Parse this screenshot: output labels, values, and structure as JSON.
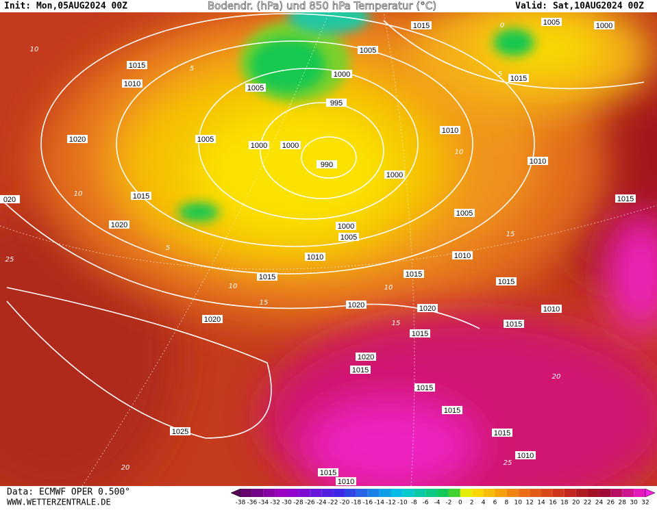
{
  "header": {
    "init": "Init: Mon,05AUG2024 00Z",
    "title": "Bodendr. (hPa) und 850 hPa Temperatur (°C)",
    "valid": "Valid: Sat,10AUG2024 00Z"
  },
  "isobar_labels": [
    "1015",
    "1005",
    "1000",
    "1005",
    "1015",
    "1010",
    "1000",
    "1015",
    "1005",
    "995",
    "1010",
    "1020",
    "1005",
    "1000",
    "1000",
    "990",
    "1010",
    "1000",
    "1015",
    "020",
    "1015",
    "1020",
    "1005",
    "1000",
    "1005",
    "1010",
    "1010",
    "1015",
    "1015",
    "1015",
    "1020",
    "1020",
    "1010",
    "1020",
    "1015",
    "1015",
    "1020",
    "1015",
    "1015",
    "1015",
    "1015",
    "1025",
    "1010",
    "1015",
    "1010"
  ],
  "temperature_labels": [
    "10",
    "5",
    "10",
    "5",
    "10",
    "15",
    "15",
    "15",
    "20",
    "25",
    "20",
    "25",
    "10",
    "10",
    "5",
    "0"
  ],
  "footer": {
    "source": "Data: ECMWF OPER 0.500°",
    "website": "WWW.WETTERZENTRALE.DE"
  },
  "color_scale": {
    "labels": [
      -38,
      -36,
      -34,
      -32,
      -30,
      -28,
      -26,
      -24,
      -22,
      -20,
      -18,
      -16,
      -14,
      -12,
      -10,
      -8,
      -6,
      -4,
      -2,
      0,
      2,
      4,
      6,
      8,
      10,
      12,
      14,
      16,
      18,
      20,
      22,
      24,
      26,
      28,
      30,
      32
    ]
  }
}
